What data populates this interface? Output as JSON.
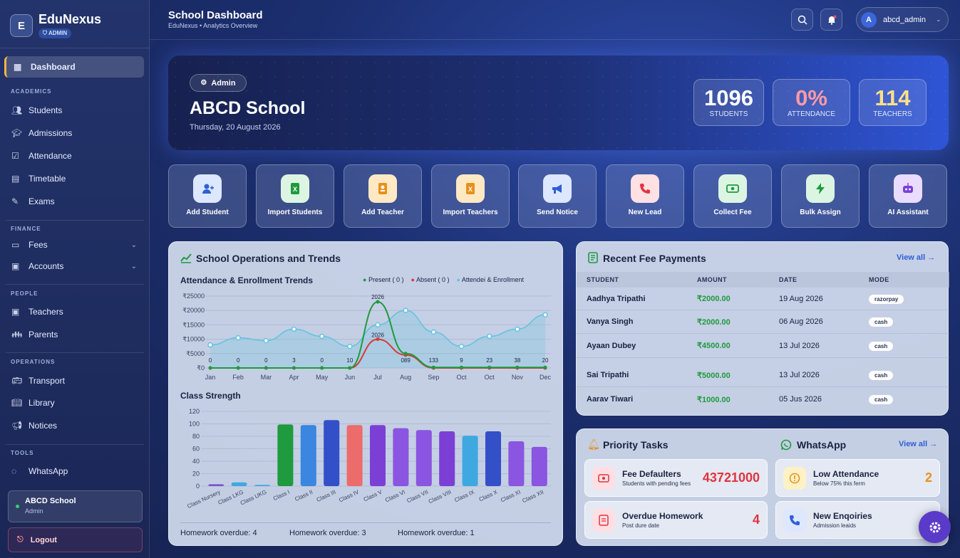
{
  "brand": {
    "logo_letter": "E",
    "name": "EduNexus",
    "badge": "ADMIN"
  },
  "sidebar": {
    "dashboard": "Dashboard",
    "sections": {
      "academics": "ACADEMICS",
      "finance": "FINANCE",
      "people": "PEOPLE",
      "operations": "OPERATIONS",
      "tools": "TOOLS"
    },
    "items": {
      "students": "Students",
      "admissions": "Admissions",
      "attendance": "Attendance",
      "timetable": "Timetable",
      "exams": "Exams",
      "fees": "Fees",
      "accounts": "Accounts",
      "teachers": "Teachers",
      "parents": "Parents",
      "transport": "Transport",
      "library": "Library",
      "notices": "Notices",
      "whatsapp": "WhatsApp"
    },
    "user": {
      "name": "ABCD School",
      "role": "Admin"
    },
    "logout": "Logout"
  },
  "header": {
    "title": "School Dashboard",
    "subtitle": "EduNexus • Analytics Overview",
    "username": "abcd_admin",
    "avatar_letter": "A"
  },
  "hero": {
    "role": "Admin",
    "school": "ABCD School",
    "date": "Thursday, 20 August 2026",
    "stats": {
      "students": {
        "value": "1096",
        "label": "STUDENTS"
      },
      "attendance": {
        "value": "0%",
        "label": "ATTENDANCE"
      },
      "teachers": {
        "value": "114",
        "label": "TEACHERS"
      }
    }
  },
  "quick_actions": [
    "Add Student",
    "Import Students",
    "Add Teacher",
    "Import Teachers",
    "Send Notice",
    "New Lead",
    "Collect Fee",
    "Bulk Assign",
    "AI Assistant"
  ],
  "operations": {
    "title": "School Operations and Trends",
    "trend_title": "Attendance & Enrollment Trends",
    "legend": {
      "present": "Present ( 0 )",
      "absent": "Absent ( 0 )",
      "enroll": "Attendei & Enrollment"
    },
    "strength_title": "Class Strength",
    "footer": [
      "Homework overdue: 4",
      "Homework overdue: 3",
      "Homework overdue: 1"
    ]
  },
  "fees": {
    "title": "Recent Fee Payments",
    "view_all": "View all →",
    "headers": [
      "STUDENT",
      "AMOUNT",
      "DATE",
      "MODE"
    ],
    "rows": [
      {
        "student": "Aadhya Tripathi",
        "amount": "₹2000.00",
        "date": "19 Aug 2026",
        "mode": "razorpay"
      },
      {
        "student": "Vanya Singh",
        "amount": "₹2000.00",
        "date": "06 Aug 2026",
        "mode": "cash"
      },
      {
        "student": "Ayaan Dubey",
        "amount": "₹4500.00",
        "date": "13 Jul 2026",
        "mode": "cash"
      },
      {
        "student": "Sai Tripathi",
        "amount": "₹5000.00",
        "date": "13 Jul 2026",
        "mode": "cash"
      },
      {
        "student": "Aarav Tiwari",
        "amount": "₹1000.00",
        "date": "05 Jus 2026",
        "mode": "cash"
      }
    ]
  },
  "tasks": {
    "title": "Priority Tasks",
    "whatsapp": "WhatsApp",
    "view_all": "View all →",
    "fee_defaulters": {
      "title": "Fee Defaulters",
      "sub": "Students with pending fees",
      "value": "43721000"
    },
    "low_attendance": {
      "title": "Low Attendance",
      "sub": "Below 75% this ferm",
      "value": "2"
    },
    "overdue_homework": {
      "title": "Overdue Homework",
      "sub": "Post dure date",
      "value": "4"
    },
    "new_enquiries": {
      "title": "New Enqoiries",
      "sub": "Admission leaids"
    }
  },
  "colors": {
    "present": "#1f9a3e",
    "absent": "#d93a3a",
    "enroll": "#64c3e0",
    "accent": "#2e5fd6"
  },
  "chart_data": [
    {
      "type": "line",
      "title": "Attendance & Enrollment Trends",
      "categories": [
        "Jan",
        "Feb",
        "Mar",
        "Apr",
        "May",
        "Jun",
        "Jul",
        "Aug",
        "Sep",
        "Oct",
        "Oct",
        "Nov",
        "Dec"
      ],
      "y_tick_labels": [
        "₹25000",
        "₹20000",
        "₹15000",
        "₹10000",
        "₹5000",
        "₹0"
      ],
      "ylim": [
        0,
        25000
      ],
      "series": [
        {
          "name": "Present ( 0 )",
          "values": [
            0,
            0,
            0,
            0,
            0,
            0,
            23000,
            5000,
            200,
            200,
            200,
            200,
            200
          ]
        },
        {
          "name": "Absent ( 0 )",
          "values": [
            0,
            0,
            0,
            0,
            0,
            0,
            10000,
            4500,
            0,
            0,
            0,
            0,
            0
          ]
        },
        {
          "name": "Attendei & Enrollment",
          "values": [
            8000,
            10500,
            9500,
            13500,
            11000,
            7500,
            15000,
            20000,
            12500,
            7500,
            11000,
            13500,
            18500
          ]
        }
      ],
      "point_labels": [
        "0",
        "0",
        "0",
        "3",
        "0",
        "10",
        "2026",
        "089",
        "133",
        "9",
        "23",
        "38",
        "20"
      ],
      "peak_labels": [
        "2026",
        "2026"
      ]
    },
    {
      "type": "bar",
      "title": "Class Strength",
      "categories": [
        "Class Nursery",
        "Class LKG",
        "Class UKG",
        "Class I",
        "Class II",
        "Class III",
        "Class IV",
        "Class V",
        "Class VI",
        "Class VII",
        "Class VIII",
        "Class IX",
        "Class X",
        "Class XI",
        "Class XII"
      ],
      "values": [
        3,
        6,
        2,
        99,
        98,
        106,
        98,
        98,
        93,
        90,
        88,
        81,
        88,
        72,
        63
      ],
      "y_tick_labels": [
        "120",
        "100",
        "80",
        "60",
        "40",
        "20",
        "0"
      ],
      "ylim": [
        0,
        120
      ],
      "colors": [
        "#7b4fd6",
        "#3fa8e0",
        "#3fa8e0",
        "#1f9a3e",
        "#3a86e0",
        "#3350c8",
        "#ec6b6b",
        "#7b3fd6",
        "#8a55e0",
        "#8a55e0",
        "#7b3fd6",
        "#3fa8e0",
        "#3350c8",
        "#8a55e0",
        "#8a55e0"
      ]
    }
  ]
}
